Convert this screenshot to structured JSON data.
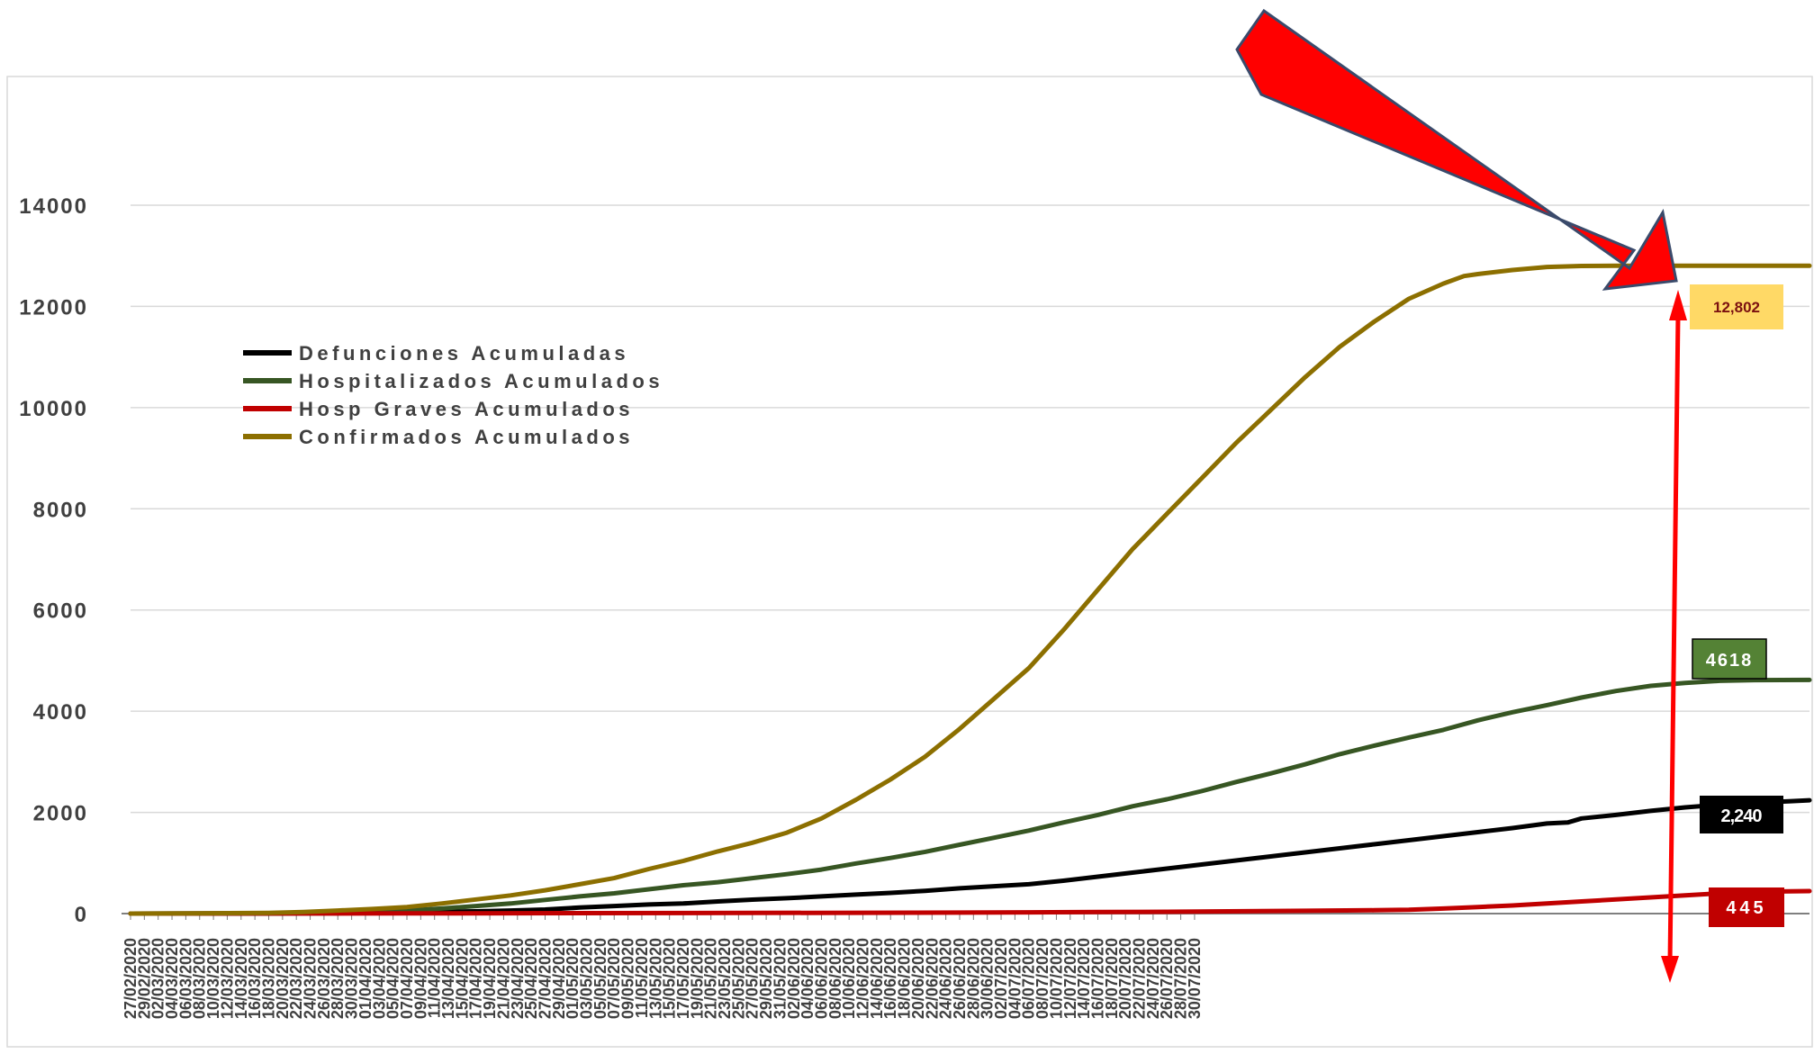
{
  "chart_data": {
    "type": "line",
    "title": "",
    "xlabel": "",
    "ylabel": "",
    "ylim": [
      0,
      14000
    ],
    "y_ticks": [
      "0",
      "2000",
      "4000",
      "6000",
      "8000",
      "10000",
      "12000",
      "14000"
    ],
    "grid": true,
    "legend_position": "upper-left",
    "start_date": "2020-02-27",
    "x_tick_labels": [
      "27/02/2020",
      "29/02/2020",
      "02/03/2020",
      "04/03/2020",
      "06/03/2020",
      "08/03/2020",
      "10/03/2020",
      "12/03/2020",
      "14/03/2020",
      "16/03/2020",
      "18/03/2020",
      "20/03/2020",
      "22/03/2020",
      "24/03/2020",
      "26/03/2020",
      "28/03/2020",
      "30/03/2020",
      "01/04/2020",
      "03/04/2020",
      "05/04/2020",
      "07/04/2020",
      "09/04/2020",
      "11/04/2020",
      "13/04/2020",
      "15/04/2020",
      "17/04/2020",
      "19/04/2020",
      "21/04/2020",
      "23/04/2020",
      "25/04/2020",
      "27/04/2020",
      "29/04/2020",
      "01/05/2020",
      "03/05/2020",
      "05/05/2020",
      "07/05/2020",
      "09/05/2020",
      "11/05/2020",
      "13/05/2020",
      "15/05/2020",
      "17/05/2020",
      "19/05/2020",
      "21/05/2020",
      "23/05/2020",
      "25/05/2020",
      "27/05/2020",
      "29/05/2020",
      "31/05/2020",
      "02/06/2020",
      "04/06/2020",
      "06/06/2020",
      "08/06/2020",
      "10/06/2020",
      "12/06/2020",
      "14/06/2020",
      "16/06/2020",
      "18/06/2020",
      "20/06/2020",
      "22/06/2020",
      "24/06/2020",
      "26/06/2020",
      "28/06/2020",
      "30/06/2020",
      "02/07/2020",
      "04/07/2020",
      "06/07/2020",
      "08/07/2020",
      "10/07/2020",
      "12/07/2020",
      "14/07/2020",
      "16/07/2020",
      "18/07/2020",
      "20/07/2020",
      "22/07/2020",
      "24/07/2020",
      "26/07/2020",
      "28/07/2020",
      "30/07/2020"
    ],
    "series": [
      {
        "name": "Defunciones Acumuladas",
        "color": "#000000",
        "points": [
          [
            0,
            0
          ],
          [
            20,
            0
          ],
          [
            24,
            3
          ],
          [
            30,
            8
          ],
          [
            35,
            12
          ],
          [
            40,
            25
          ],
          [
            50,
            45
          ],
          [
            55,
            60
          ],
          [
            60,
            80
          ],
          [
            65,
            120
          ],
          [
            70,
            150
          ],
          [
            75,
            180
          ],
          [
            80,
            200
          ],
          [
            85,
            240
          ],
          [
            90,
            275
          ],
          [
            95,
            305
          ],
          [
            100,
            340
          ],
          [
            105,
            375
          ],
          [
            110,
            410
          ],
          [
            115,
            450
          ],
          [
            120,
            500
          ],
          [
            125,
            540
          ],
          [
            130,
            580
          ],
          [
            135,
            650
          ],
          [
            140,
            730
          ],
          [
            145,
            810
          ],
          [
            150,
            890
          ],
          [
            155,
            970
          ],
          [
            160,
            1050
          ],
          [
            165,
            1130
          ],
          [
            170,
            1210
          ],
          [
            175,
            1290
          ],
          [
            180,
            1370
          ],
          [
            185,
            1450
          ],
          [
            190,
            1530
          ],
          [
            195,
            1610
          ],
          [
            200,
            1690
          ],
          [
            205,
            1780
          ],
          [
            208,
            1800
          ],
          [
            210,
            1880
          ],
          [
            215,
            1950
          ],
          [
            220,
            2030
          ],
          [
            225,
            2100
          ],
          [
            230,
            2150
          ],
          [
            235,
            2190
          ],
          [
            240,
            2220
          ],
          [
            243,
            2240
          ]
        ]
      },
      {
        "name": "Hospitalizados Acumulados",
        "color": "#375623",
        "points": [
          [
            0,
            0
          ],
          [
            30,
            15
          ],
          [
            35,
            30
          ],
          [
            40,
            60
          ],
          [
            45,
            100
          ],
          [
            50,
            150
          ],
          [
            55,
            200
          ],
          [
            60,
            270
          ],
          [
            65,
            340
          ],
          [
            70,
            400
          ],
          [
            75,
            480
          ],
          [
            80,
            560
          ],
          [
            85,
            620
          ],
          [
            90,
            700
          ],
          [
            95,
            780
          ],
          [
            100,
            870
          ],
          [
            105,
            990
          ],
          [
            110,
            1100
          ],
          [
            115,
            1220
          ],
          [
            120,
            1360
          ],
          [
            125,
            1500
          ],
          [
            130,
            1640
          ],
          [
            135,
            1800
          ],
          [
            140,
            1950
          ],
          [
            145,
            2120
          ],
          [
            150,
            2260
          ],
          [
            155,
            2420
          ],
          [
            160,
            2600
          ],
          [
            165,
            2770
          ],
          [
            170,
            2950
          ],
          [
            175,
            3150
          ],
          [
            180,
            3320
          ],
          [
            185,
            3480
          ],
          [
            190,
            3630
          ],
          [
            195,
            3820
          ],
          [
            200,
            3980
          ],
          [
            205,
            4120
          ],
          [
            210,
            4270
          ],
          [
            215,
            4400
          ],
          [
            220,
            4500
          ],
          [
            225,
            4560
          ],
          [
            230,
            4600
          ],
          [
            235,
            4615
          ],
          [
            243,
            4618
          ]
        ]
      },
      {
        "name": "Hosp Graves Acumulados",
        "color": "#c00000",
        "points": [
          [
            0,
            0
          ],
          [
            40,
            3
          ],
          [
            80,
            10
          ],
          [
            120,
            20
          ],
          [
            140,
            30
          ],
          [
            150,
            35
          ],
          [
            170,
            55
          ],
          [
            180,
            65
          ],
          [
            185,
            75
          ],
          [
            190,
            100
          ],
          [
            195,
            130
          ],
          [
            200,
            160
          ],
          [
            205,
            200
          ],
          [
            210,
            240
          ],
          [
            215,
            280
          ],
          [
            220,
            320
          ],
          [
            225,
            360
          ],
          [
            230,
            400
          ],
          [
            235,
            430
          ],
          [
            243,
            445
          ]
        ]
      },
      {
        "name": "Confirmados Acumulados",
        "color": "#8c6f00",
        "points": [
          [
            0,
            0
          ],
          [
            10,
            5
          ],
          [
            20,
            15
          ],
          [
            25,
            30
          ],
          [
            30,
            60
          ],
          [
            35,
            90
          ],
          [
            40,
            130
          ],
          [
            45,
            200
          ],
          [
            50,
            280
          ],
          [
            55,
            360
          ],
          [
            60,
            460
          ],
          [
            65,
            580
          ],
          [
            70,
            700
          ],
          [
            75,
            880
          ],
          [
            80,
            1040
          ],
          [
            85,
            1230
          ],
          [
            90,
            1400
          ],
          [
            95,
            1600
          ],
          [
            100,
            1880
          ],
          [
            105,
            2250
          ],
          [
            110,
            2650
          ],
          [
            115,
            3100
          ],
          [
            120,
            3650
          ],
          [
            125,
            4250
          ],
          [
            130,
            4850
          ],
          [
            135,
            5600
          ],
          [
            140,
            6400
          ],
          [
            145,
            7200
          ],
          [
            150,
            7900
          ],
          [
            155,
            8600
          ],
          [
            160,
            9300
          ],
          [
            165,
            9950
          ],
          [
            170,
            10600
          ],
          [
            175,
            11200
          ],
          [
            180,
            11700
          ],
          [
            185,
            12150
          ],
          [
            190,
            12450
          ],
          [
            193,
            12600
          ],
          [
            195,
            12640
          ],
          [
            200,
            12720
          ],
          [
            205,
            12780
          ],
          [
            210,
            12800
          ],
          [
            215,
            12802
          ],
          [
            243,
            12802
          ]
        ]
      }
    ],
    "annotations": {
      "confirmados_final": "12,802",
      "hospitalizados_final": "4618",
      "defunciones_final": "2,240",
      "graves_final": "445"
    }
  },
  "colors": {
    "arrow_fill": "#ff0000",
    "arrow_stroke": "#3a4a6b",
    "badge_confirmados_bg": "#ffd966",
    "badge_confirmados_text": "#7b1010",
    "badge_hosp_bg": "#548235",
    "badge_def_bg": "#000000",
    "badge_graves_bg": "#c00000",
    "grid": "#d9d9d9",
    "axis": "#7f7f7f"
  }
}
